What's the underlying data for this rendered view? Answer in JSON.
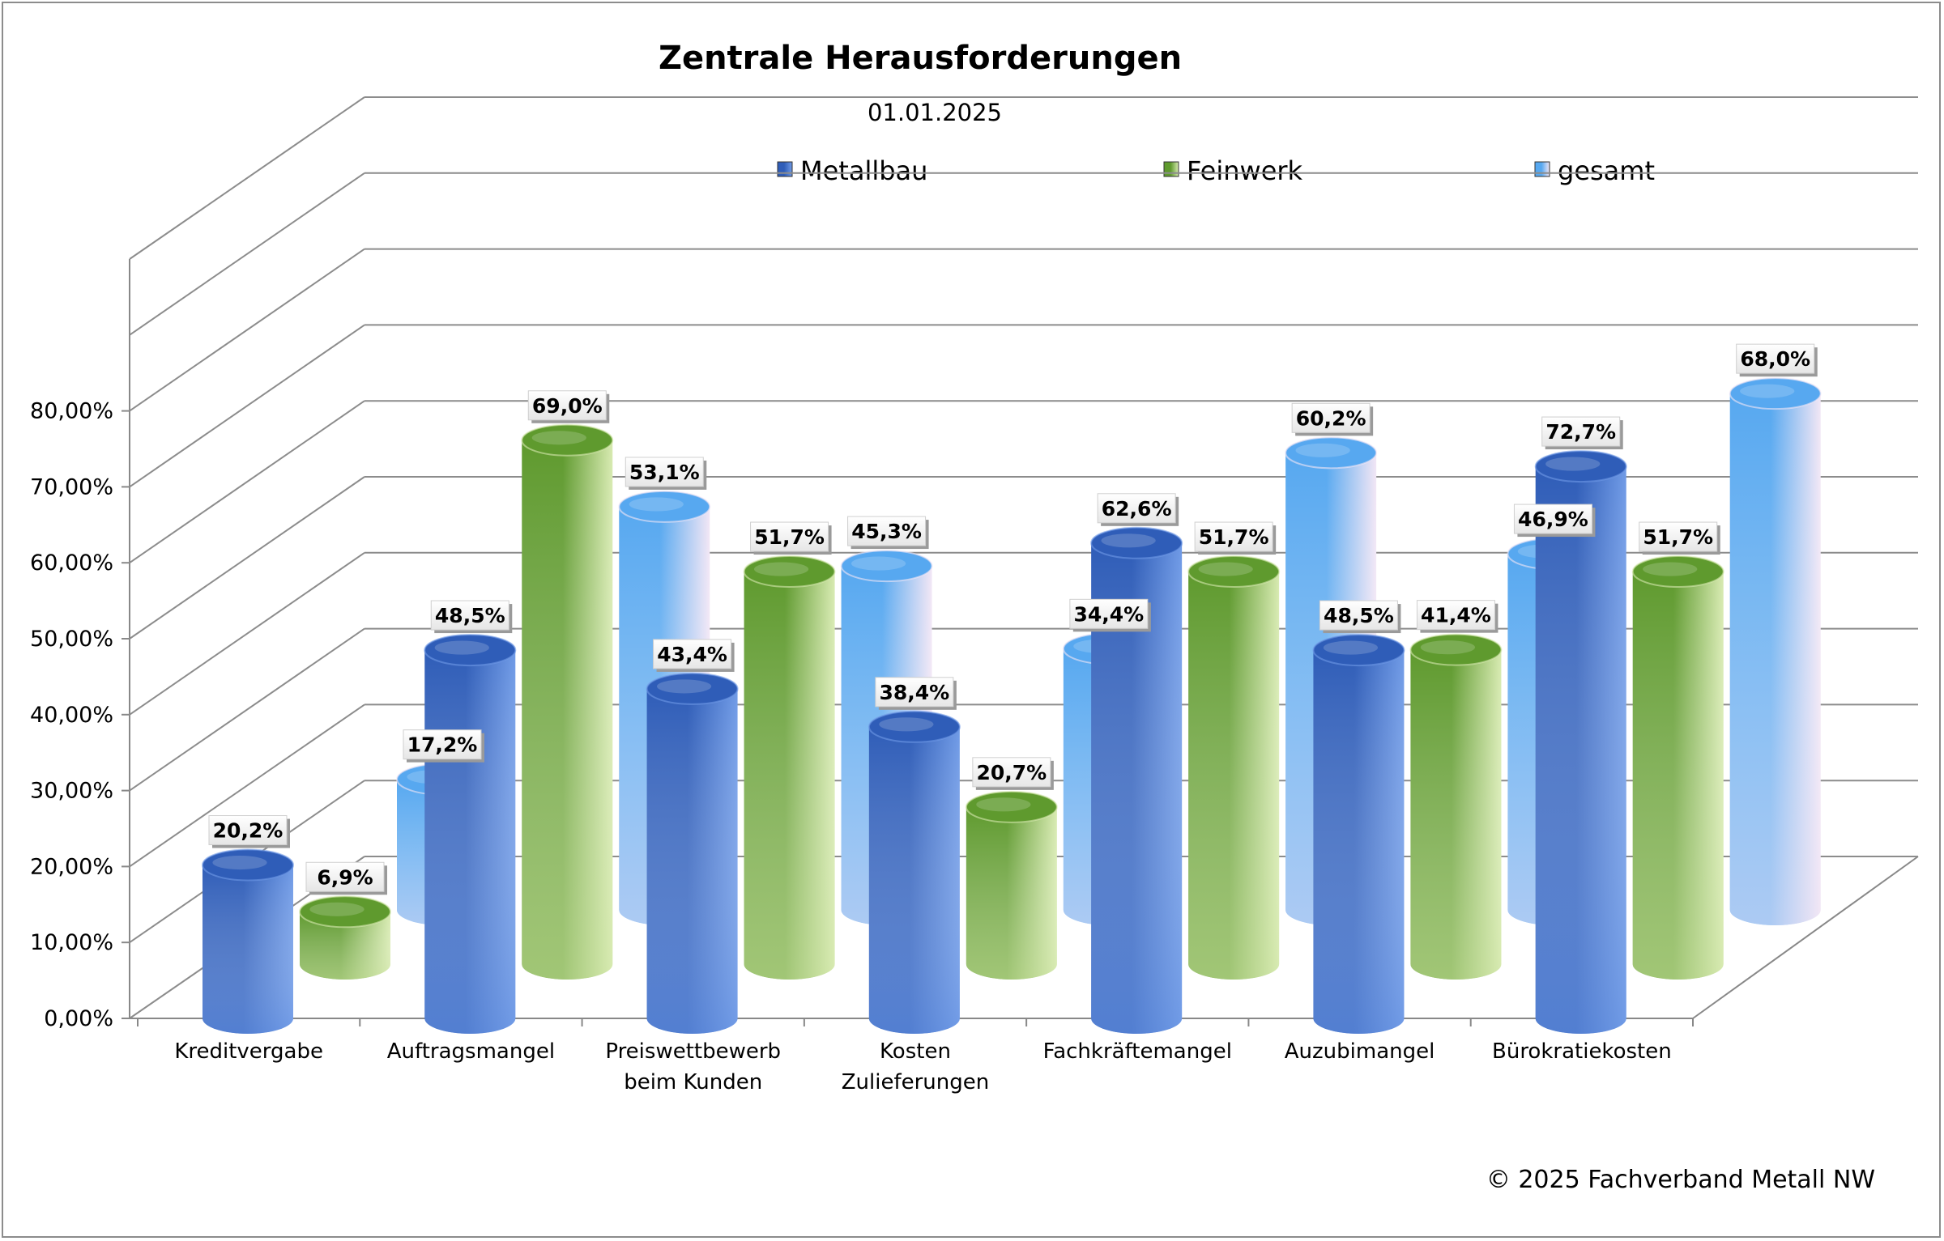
{
  "chart_data": {
    "type": "bar",
    "variant": "3d-cylinder-grouped",
    "title": "Zentrale Herausforderungen",
    "subtitle": "01.01.2025",
    "categories": [
      "Kreditvergabe",
      "Auftragsmangel",
      "Preiswettbewerb beim Kunden",
      "Kosten Zulieferungen",
      "Fachkräftemangel",
      "Auzubimangel",
      "Bürokratiekosten"
    ],
    "category_label_lines": [
      [
        "Kreditvergabe"
      ],
      [
        "Auftragsmangel"
      ],
      [
        "Preiswettbewerb",
        "beim Kunden"
      ],
      [
        "Kosten",
        "Zulieferungen"
      ],
      [
        "Fachkräftemangel"
      ],
      [
        "Auzubimangel"
      ],
      [
        "Bürokratiekosten"
      ]
    ],
    "series": [
      {
        "name": "Metallbau",
        "color": "#2f5db8",
        "light": "#6f9ae6",
        "values": [
          20.2,
          48.5,
          43.4,
          38.4,
          62.6,
          48.5,
          72.7
        ],
        "labels": [
          "20,2%",
          "48,5%",
          "43,4%",
          "38,4%",
          "62,6%",
          "48,5%",
          "72,7%"
        ]
      },
      {
        "name": "Feinwerk",
        "color": "#5f9a2e",
        "light": "#d7eab0",
        "values": [
          6.9,
          69.0,
          51.7,
          20.7,
          51.7,
          41.4,
          51.7
        ],
        "labels": [
          "6,9%",
          "69,0%",
          "51,7%",
          "20,7%",
          "51,7%",
          "41,4%",
          "51,7%"
        ]
      },
      {
        "name": "gesamt",
        "color": "#57a8f0",
        "light": "#f2e6f5",
        "values": [
          17.2,
          53.1,
          45.3,
          34.4,
          60.2,
          46.9,
          68.0
        ],
        "labels": [
          "17,2%",
          "53,1%",
          "45,3%",
          "34,4%",
          "60,2%",
          "46,9%",
          "68,0%"
        ]
      }
    ],
    "y_ticks": [
      0,
      10,
      20,
      30,
      40,
      50,
      60,
      70,
      80
    ],
    "y_tick_labels": [
      "0,00%",
      "10,00%",
      "20,00%",
      "30,00%",
      "40,00%",
      "50,00%",
      "60,00%",
      "70,00%",
      "80,00%"
    ],
    "ylim": [
      0,
      100
    ],
    "grid": true,
    "legend": "top"
  },
  "footer": {
    "copyright": "© 2025 Fachverband Metall NW"
  }
}
